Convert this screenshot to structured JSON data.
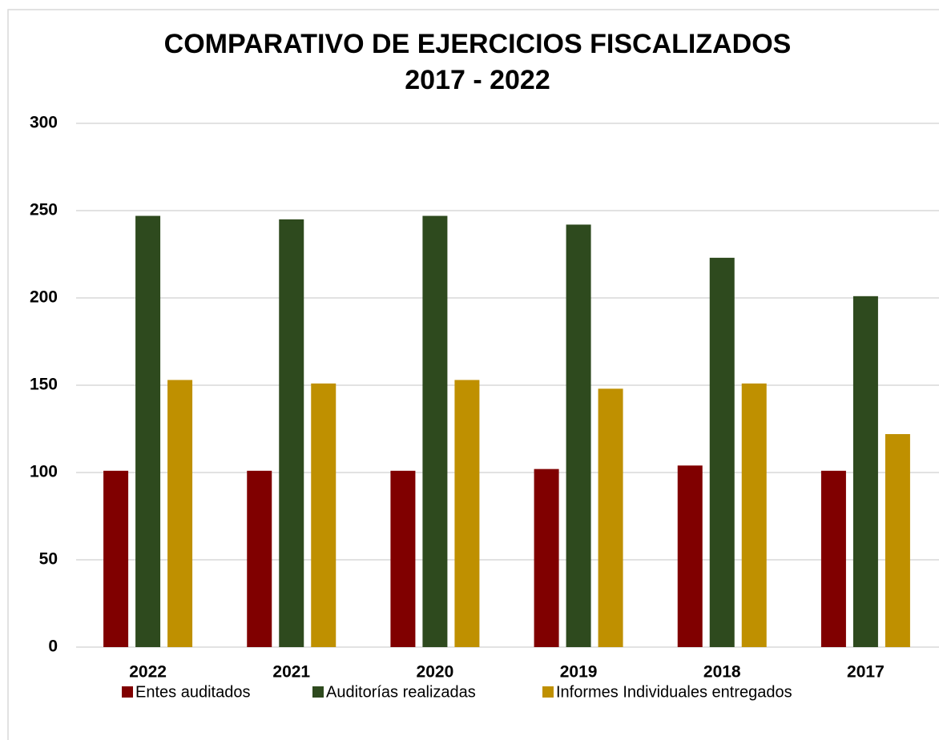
{
  "chart_data": {
    "type": "bar",
    "title": "COMPARATIVO DE EJERCICIOS FISCALIZADOS",
    "subtitle": "2017 - 2022",
    "categories": [
      "2022",
      "2021",
      "2020",
      "2019",
      "2018",
      "2017"
    ],
    "series": [
      {
        "name": "Entes auditados",
        "color": "#800000",
        "values": [
          101,
          101,
          101,
          102,
          104,
          101
        ]
      },
      {
        "name": "Auditorías realizadas",
        "color": "#2e4a1e",
        "values": [
          247,
          245,
          247,
          242,
          223,
          201
        ]
      },
      {
        "name": "Informes Individuales entregados",
        "color": "#bf9000",
        "values": [
          153,
          151,
          153,
          148,
          151,
          122
        ]
      }
    ],
    "ylim": [
      0,
      300
    ],
    "yticks": [
      0,
      50,
      100,
      150,
      200,
      250,
      300
    ],
    "grid": true,
    "legend": "bottom"
  }
}
